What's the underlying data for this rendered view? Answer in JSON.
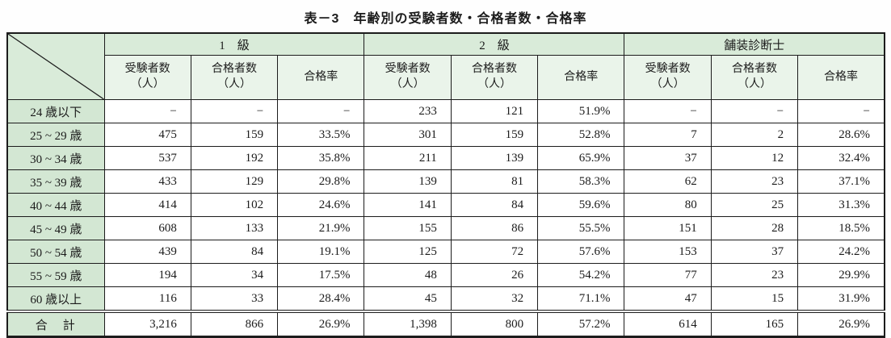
{
  "page": {
    "title": "表－3　年齢別の受験者数・合格者数・合格率"
  },
  "colors": {
    "header_green": "#d3e7d3",
    "group_header_green": "#d9ebd9",
    "subheader_green": "#eaf4ea",
    "border_black": "#1c1c1c"
  },
  "table": {
    "col_groups": [
      {
        "label": "1　級"
      },
      {
        "label": "2　級"
      },
      {
        "label": "舗装診断士"
      }
    ],
    "sub_columns": [
      {
        "line1": "受験者数",
        "line2": "（人）"
      },
      {
        "line1": "合格者数",
        "line2": "（人）"
      },
      {
        "line1": "合格率",
        "line2": ""
      }
    ],
    "rows": [
      {
        "label": "24 歳以下",
        "cells": [
          "−",
          "−",
          "−",
          "233",
          "121",
          "51.9%",
          "−",
          "−",
          "−"
        ]
      },
      {
        "label": "25 ~ 29 歳",
        "cells": [
          "475",
          "159",
          "33.5%",
          "301",
          "159",
          "52.8%",
          "7",
          "2",
          "28.6%"
        ]
      },
      {
        "label": "30 ~ 34 歳",
        "cells": [
          "537",
          "192",
          "35.8%",
          "211",
          "139",
          "65.9%",
          "37",
          "12",
          "32.4%"
        ]
      },
      {
        "label": "35 ~ 39 歳",
        "cells": [
          "433",
          "129",
          "29.8%",
          "139",
          "81",
          "58.3%",
          "62",
          "23",
          "37.1%"
        ]
      },
      {
        "label": "40 ~ 44 歳",
        "cells": [
          "414",
          "102",
          "24.6%",
          "141",
          "84",
          "59.6%",
          "80",
          "25",
          "31.3%"
        ]
      },
      {
        "label": "45 ~ 49 歳",
        "cells": [
          "608",
          "133",
          "21.9%",
          "155",
          "86",
          "55.5%",
          "151",
          "28",
          "18.5%"
        ]
      },
      {
        "label": "50 ~ 54 歳",
        "cells": [
          "439",
          "84",
          "19.1%",
          "125",
          "72",
          "57.6%",
          "153",
          "37",
          "24.2%"
        ]
      },
      {
        "label": "55 ~ 59 歳",
        "cells": [
          "194",
          "34",
          "17.5%",
          "48",
          "26",
          "54.2%",
          "77",
          "23",
          "29.9%"
        ]
      },
      {
        "label": "60 歳以上",
        "cells": [
          "116",
          "33",
          "28.4%",
          "45",
          "32",
          "71.1%",
          "47",
          "15",
          "31.9%"
        ]
      }
    ],
    "total_row": {
      "label": "合　計",
      "cells": [
        "3,216",
        "866",
        "26.9%",
        "1,398",
        "800",
        "57.2%",
        "614",
        "165",
        "26.9%"
      ]
    }
  }
}
